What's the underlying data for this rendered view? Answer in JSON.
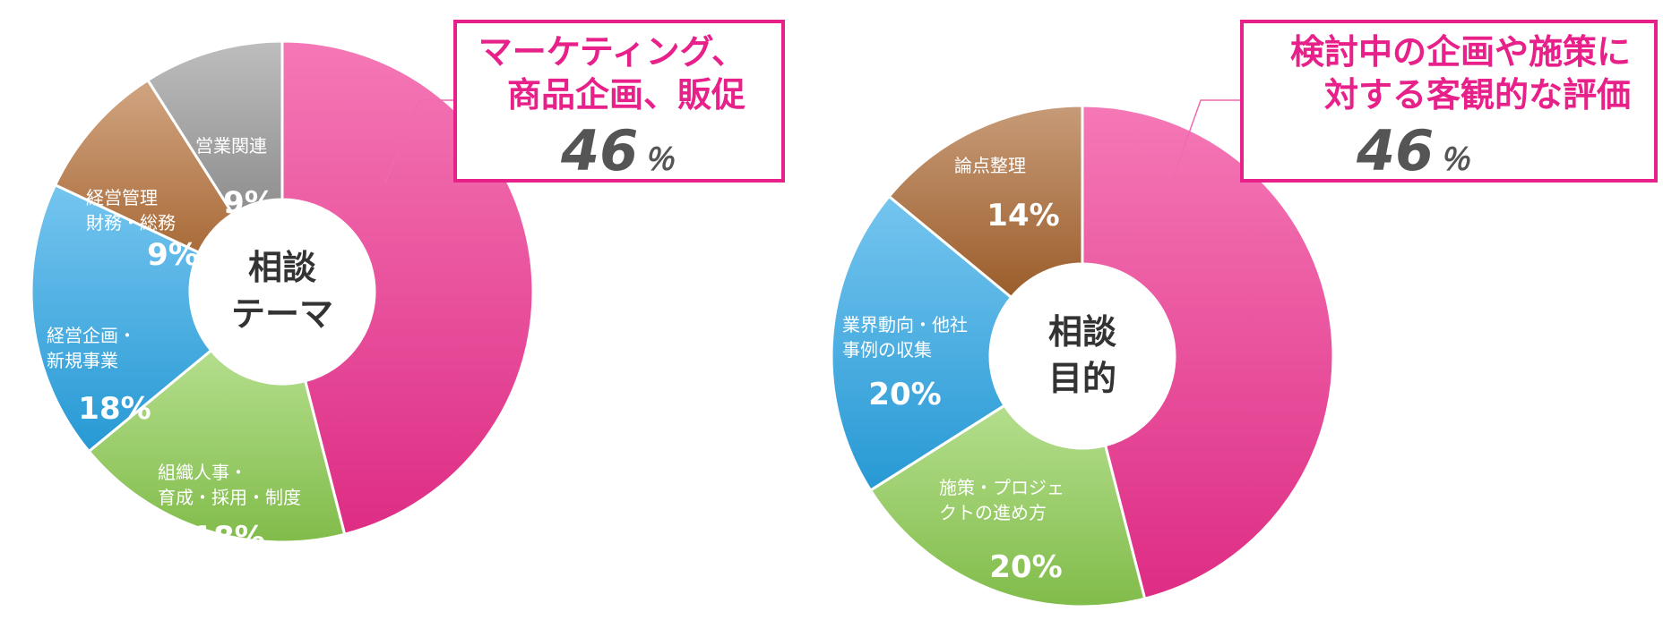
{
  "chart_data": [
    {
      "type": "pie",
      "center_label": [
        "相談",
        "テーマ"
      ],
      "slices": [
        {
          "label": "マーケティング、商品企画、販促",
          "label_lines": [
            "マーケティング、",
            "商品企画、販促"
          ],
          "value": 46,
          "value_text": "46",
          "unit_text": "％",
          "color": "#f0308f"
        },
        {
          "label": "組織人事・育成・採用・制度",
          "label_lines": [
            "組織人事・",
            "育成・採用・制度"
          ],
          "value": 18,
          "value_text": "18%",
          "color": "#8ccc50"
        },
        {
          "label": "経営企画・新規事業",
          "label_lines": [
            "経営企画・",
            "新規事業"
          ],
          "value": 18,
          "value_text": "18%",
          "color": "#2aa6e6"
        },
        {
          "label": "経営管理財務・総務",
          "label_lines": [
            "経営管理",
            "財務・総務"
          ],
          "value": 9,
          "value_text": "9%",
          "color": "#b8743e"
        },
        {
          "label": "営業関連",
          "label_lines": [
            "営業関連"
          ],
          "value": 9,
          "value_text": "9%",
          "color": "#9a9a9a"
        }
      ]
    },
    {
      "type": "pie",
      "center_label": [
        "相談",
        "目的"
      ],
      "slices": [
        {
          "label": "検討中の企画や施策に対する客観的な評価",
          "label_lines": [
            "検討中の企画や施策に",
            "対する客観的な評価"
          ],
          "value": 46,
          "value_text": "46",
          "unit_text": "％",
          "color": "#f0308f"
        },
        {
          "label": "施策・プロジェクトの進め方",
          "label_lines": [
            "施策・プロジェ",
            "クトの進め方"
          ],
          "value": 20,
          "value_text": "20%",
          "color": "#8ccc50"
        },
        {
          "label": "業界動向・他社事例の収集",
          "label_lines": [
            "業界動向・他社",
            "事例の収集"
          ],
          "value": 20,
          "value_text": "20%",
          "color": "#2aa6e6"
        },
        {
          "label": "論点整理",
          "label_lines": [
            "論点整理"
          ],
          "value": 14,
          "value_text": "14%",
          "color": "#a9652f"
        }
      ]
    }
  ]
}
